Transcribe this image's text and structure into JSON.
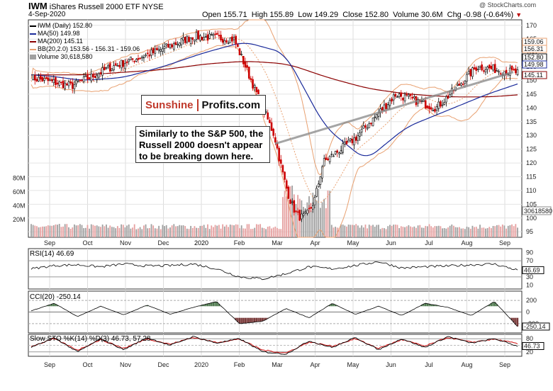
{
  "header": {
    "symbol": "IWM",
    "name": "iShares Russell 2000 ETF",
    "exchange": "NYSE",
    "date": "4-Sep-2020",
    "copyright": "@ StockCharts.com",
    "open": "Open 155.71",
    "high": "High 155.89",
    "low": "Low 149.29",
    "close": "Close 152.80",
    "volume": "Volume 30.6M",
    "chg": "Chg -0.98 (-0.64%)"
  },
  "brand": {
    "part1": "Sunshine",
    "part2": "Profits.com"
  },
  "annotation": "Similarly to the S&P 500, the Russell 2000 doesn't appear to be breaking down here.",
  "colors": {
    "up": "#000000",
    "down": "#cc0000",
    "ma50": "#1a2a9a",
    "ma200": "#8b0000",
    "bb": "#e8a070",
    "vol_up": "#a0a0a0",
    "vol_down": "#e6a0a0",
    "rsi": "#000000",
    "cci_pos": "#4f7a4f",
    "cci_neg": "#7a3a3a",
    "stoch_k": "#000000",
    "stoch_d": "#d01010",
    "trendline": "#888888"
  },
  "chart_data": [
    {
      "type": "line",
      "panel": "price",
      "title": "IWM (Daily) 152.80",
      "x_labels": [
        "Sep",
        "Oct",
        "Nov",
        "Dec",
        "2020",
        "Feb",
        "Mar",
        "Apr",
        "May",
        "Jun",
        "Jul",
        "Aug",
        "Sep"
      ],
      "ylim": [
        93,
        172
      ],
      "y_ticks": [
        95,
        100,
        105,
        110,
        115,
        120,
        125,
        130,
        135,
        140,
        145,
        150,
        155,
        160,
        165,
        170
      ],
      "volume_ticks": [
        "20M",
        "40M",
        "60M",
        "80M"
      ],
      "legend": [
        "IWM (Daily) 152.80",
        "MA(50) 149.98",
        "MA(200) 145.11",
        "BB(20,2.0) 153.56 - 156.31 - 159.06",
        "Volume 30,618,580"
      ],
      "price_labels": [
        "159.06",
        "156.31",
        "152.80",
        "149.98",
        "145.11"
      ],
      "volume_label": "30618580",
      "series": [
        {
          "name": "IWM",
          "x": [
            "Sep",
            "Oct",
            "Nov",
            "Dec",
            "2020",
            "Feb",
            "Mar",
            "Apr",
            "May",
            "Jun",
            "Jul",
            "Aug",
            "Sep"
          ],
          "values": [
            151,
            148,
            155,
            160,
            166,
            165,
            130,
            118,
            129,
            145,
            140,
            155,
            152.8
          ]
        },
        {
          "name": "MA(50)",
          "x": [
            "Sep",
            "Oct",
            "Nov",
            "Dec",
            "2020",
            "Feb",
            "Mar",
            "Apr",
            "May",
            "Jun",
            "Jul",
            "Aug",
            "Sep"
          ],
          "values": [
            152,
            150,
            151,
            155,
            160,
            164,
            160,
            133,
            121,
            133,
            139,
            145,
            149.98
          ]
        },
        {
          "name": "MA(200)",
          "x": [
            "Sep",
            "Oct",
            "Nov",
            "Dec",
            "2020",
            "Feb",
            "Mar",
            "Apr",
            "May",
            "Jun",
            "Jul",
            "Aug",
            "Sep"
          ],
          "values": [
            152,
            152,
            153,
            154,
            156,
            157,
            156,
            151,
            147,
            145,
            144,
            144,
            145.11
          ]
        }
      ]
    },
    {
      "type": "line",
      "panel": "RSI",
      "title": "RSI(14) 46.69",
      "y_ticks": [
        10,
        30,
        50,
        70,
        90
      ],
      "ylim": [
        0,
        100
      ],
      "value_label": "46.69",
      "values": [
        50,
        58,
        60,
        55,
        62,
        57,
        58,
        62,
        50,
        30,
        25,
        38,
        55,
        50,
        58,
        68,
        52,
        55,
        57,
        60,
        62,
        46.69
      ]
    },
    {
      "type": "area",
      "panel": "CCI",
      "title": "CCI(20) -250.14",
      "y_ticks": [
        -200,
        0,
        200
      ],
      "ylim": [
        -360,
        360
      ],
      "value_label": "-250.14",
      "values": [
        20,
        150,
        -80,
        100,
        -50,
        120,
        -40,
        80,
        180,
        -200,
        -160,
        60,
        -100,
        150,
        -40,
        100,
        -60,
        150,
        80,
        -60,
        180,
        -250.14
      ]
    },
    {
      "type": "line",
      "panel": "STO",
      "title": "Slow STO %K(14) %D(3) 46.73, 57.28",
      "y_ticks": [
        20,
        50,
        80
      ],
      "ylim": [
        0,
        100
      ],
      "value_label": "46.73",
      "series": [
        {
          "name": "%K",
          "values": [
            40,
            85,
            20,
            80,
            30,
            85,
            50,
            90,
            60,
            80,
            20,
            10,
            70,
            40,
            85,
            30,
            80,
            40,
            90,
            60,
            80,
            46.73
          ]
        },
        {
          "name": "%D",
          "values": [
            45,
            80,
            28,
            76,
            36,
            80,
            55,
            86,
            63,
            78,
            28,
            15,
            65,
            46,
            80,
            36,
            76,
            46,
            86,
            64,
            78,
            57.28
          ]
        }
      ]
    }
  ]
}
